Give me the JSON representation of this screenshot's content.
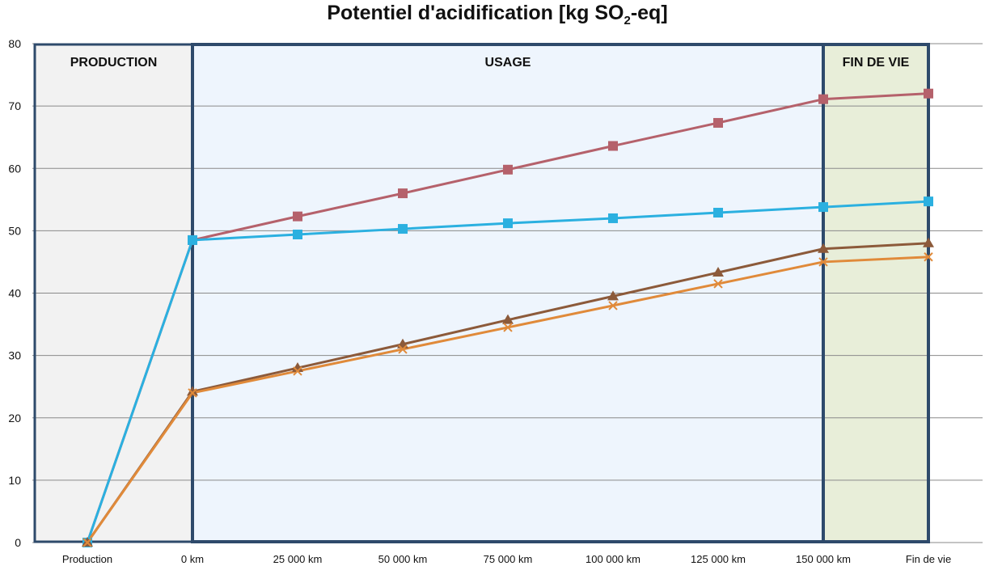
{
  "chart_data": {
    "type": "line",
    "title": {
      "main": "Potentiel d'acidification [kg SO",
      "sub": "2",
      "suffix": "-eq]"
    },
    "categories": [
      "Production",
      "0 km",
      "25 000 km",
      "50 000 km",
      "75 000 km",
      "100 000 km",
      "125 000 km",
      "150 000 km",
      "Fin de vie"
    ],
    "ylim": [
      0,
      80
    ],
    "yticks": [
      0,
      10,
      20,
      30,
      40,
      50,
      60,
      70,
      80
    ],
    "grid": true,
    "phases": [
      {
        "label": "PRODUCTION",
        "from": 0,
        "to": 1,
        "fill": "#f2f2f2"
      },
      {
        "label": "USAGE",
        "from": 1,
        "to": 7,
        "fill": "#eef5fd"
      },
      {
        "label": "FIN DE VIE",
        "from": 7,
        "to": 8,
        "fill": "#e8eed9"
      }
    ],
    "series": [
      {
        "color": "#b5616b",
        "marker": "square",
        "values": [
          0,
          48.5,
          52.3,
          56,
          59.8,
          63.6,
          67.3,
          71.1,
          72
        ]
      },
      {
        "color": "#2bb0e0",
        "marker": "square",
        "values": [
          0,
          48.5,
          49.4,
          50.3,
          51.2,
          52,
          52.9,
          53.8,
          54.7
        ]
      },
      {
        "color": "#8c5a3a",
        "marker": "triangle",
        "values": [
          0,
          24.2,
          28,
          31.8,
          35.7,
          39.5,
          43.3,
          47.1,
          48
        ]
      },
      {
        "color": "#e08a3a",
        "marker": "x",
        "values": [
          0,
          24,
          27.5,
          31,
          34.5,
          38,
          41.5,
          45,
          45.8
        ]
      }
    ]
  },
  "colors": {
    "frame": "#2e4a6b",
    "grid": "#8a8a8a"
  }
}
